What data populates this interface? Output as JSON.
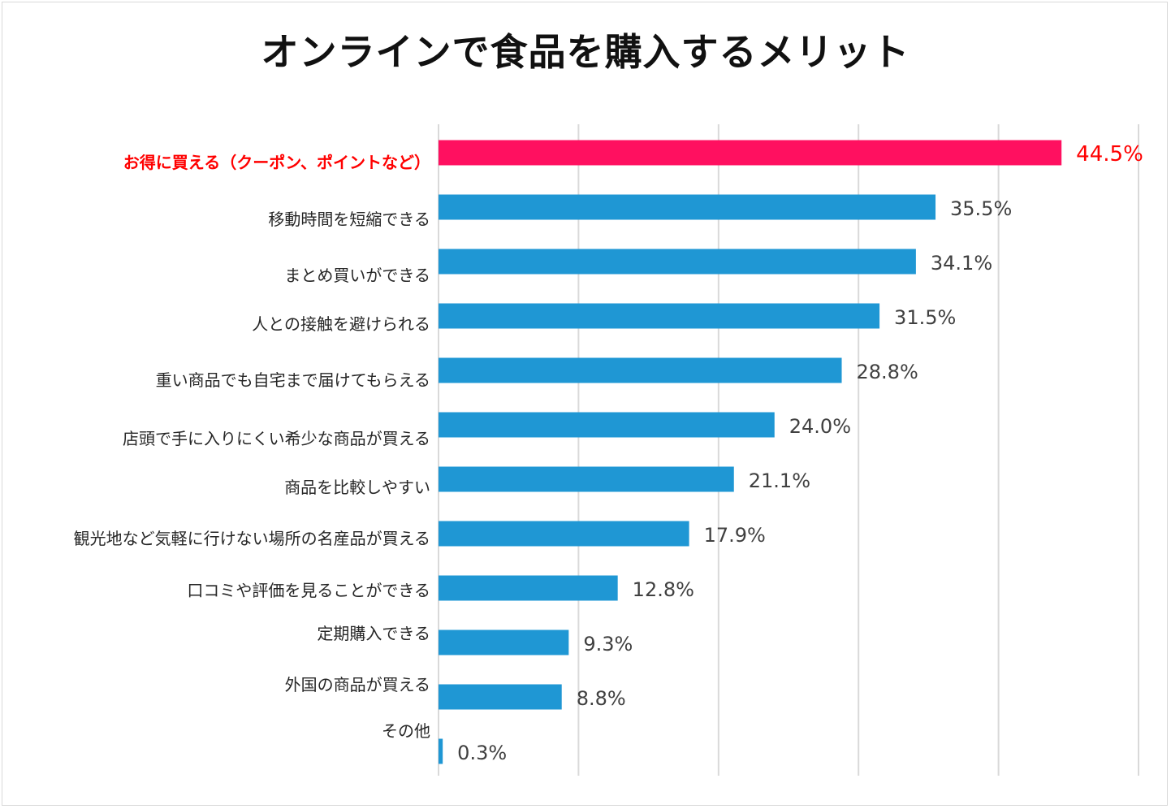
{
  "chart_data": {
    "type": "bar",
    "orientation": "horizontal",
    "title": "オンラインで食品を購入するメリット",
    "categories": [
      "お得に買える（クーポン、ポイントなど）",
      "移動時間を短縮できる",
      "まとめ買いができる",
      "人との接触を避けられる",
      "重い商品でも自宅まで届けてもらえる",
      "店頭で手に入りにくい希少な商品が買える",
      "商品を比較しやすい",
      "観光地など気軽に行けない場所の名産品が買える",
      "口コミや評価を見ることができる",
      "定期購入できる",
      "外国の商品が買える",
      "その他"
    ],
    "values": [
      44.5,
      35.5,
      34.1,
      31.5,
      28.8,
      24.0,
      21.1,
      17.9,
      12.8,
      9.3,
      8.8,
      0.3
    ],
    "value_labels": [
      "44.5%",
      "35.5%",
      "34.1%",
      "31.5%",
      "28.8%",
      "24.0%",
      "21.1%",
      "17.9%",
      "12.8%",
      "9.3%",
      "8.8%",
      "0.3%"
    ],
    "highlight_index": 0,
    "xlim": [
      0,
      50
    ],
    "x_gridlines": [
      0,
      10,
      20,
      30,
      40,
      50
    ],
    "xlabel": "",
    "ylabel": "",
    "grid": true,
    "legend": "none",
    "colors": {
      "bar": "#1f97d4",
      "highlight_bar": "#ff1060",
      "highlight_text": "#ff0000",
      "value_text": "#404040",
      "category_text": "#262626",
      "grid": "#d9d9d9"
    }
  }
}
